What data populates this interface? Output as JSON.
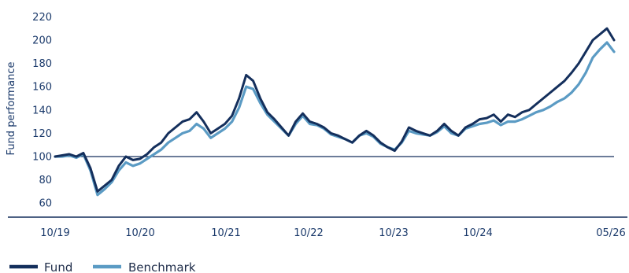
{
  "chart_data": {
    "type": "line",
    "title": "",
    "xlabel": "",
    "ylabel": "Fund performance",
    "y_ticks": [
      60,
      80,
      100,
      120,
      140,
      160,
      180,
      200,
      220
    ],
    "x_ticks": [
      "10/19",
      "10/20",
      "10/21",
      "10/22",
      "10/23",
      "10/24",
      "05/26"
    ],
    "ylim": [
      52,
      225
    ],
    "reference_line": 100,
    "legend_position": "bottom-left",
    "colors": {
      "fund": "#142f5c",
      "benchmark": "#5b9bc4",
      "axis": "#142f5c",
      "text": "#1b3a6b"
    },
    "series": [
      {
        "name": "Fund",
        "color": "#142f5c",
        "x": [
          "10/19",
          "11/19",
          "12/19",
          "01/20",
          "02/20",
          "03/20",
          "04/20",
          "05/20",
          "06/20",
          "07/20",
          "08/20",
          "09/20",
          "10/20",
          "11/20",
          "12/20",
          "01/21",
          "02/21",
          "03/21",
          "04/21",
          "05/21",
          "06/21",
          "07/21",
          "08/21",
          "09/21",
          "10/21",
          "11/21",
          "12/21",
          "01/22",
          "02/22",
          "03/22",
          "04/22",
          "05/22",
          "06/22",
          "07/22",
          "08/22",
          "09/22",
          "10/22",
          "11/22",
          "12/22",
          "01/23",
          "02/23",
          "03/23",
          "04/23",
          "05/23",
          "06/23",
          "07/23",
          "08/23",
          "09/23",
          "10/23",
          "11/23",
          "12/23",
          "01/24",
          "02/24",
          "03/24",
          "04/24",
          "05/24",
          "06/24",
          "07/24",
          "08/24",
          "09/24",
          "10/24",
          "11/24",
          "12/24",
          "01/25",
          "02/25",
          "03/25",
          "04/25",
          "05/25",
          "06/25",
          "07/25",
          "08/25",
          "09/25",
          "10/25",
          "11/25",
          "12/25",
          "01/26",
          "02/26",
          "03/26",
          "04/26",
          "05/26"
        ],
        "values": [
          100,
          101,
          102,
          100,
          103,
          90,
          70,
          75,
          80,
          92,
          100,
          97,
          98,
          102,
          108,
          112,
          120,
          125,
          130,
          132,
          138,
          130,
          120,
          124,
          128,
          135,
          150,
          170,
          165,
          150,
          138,
          132,
          125,
          118,
          130,
          137,
          130,
          128,
          125,
          120,
          118,
          115,
          112,
          118,
          122,
          118,
          112,
          108,
          105,
          113,
          125,
          122,
          120,
          118,
          122,
          128,
          122,
          118,
          125,
          128,
          132,
          133,
          136,
          130,
          136,
          134,
          138,
          140,
          145,
          150,
          155,
          160,
          165,
          172,
          180,
          190,
          200,
          205,
          210,
          200
        ]
      },
      {
        "name": "Benchmark",
        "color": "#5b9bc4",
        "x": [
          "10/19",
          "11/19",
          "12/19",
          "01/20",
          "02/20",
          "03/20",
          "04/20",
          "05/20",
          "06/20",
          "07/20",
          "08/20",
          "09/20",
          "10/20",
          "11/20",
          "12/20",
          "01/21",
          "02/21",
          "03/21",
          "04/21",
          "05/21",
          "06/21",
          "07/21",
          "08/21",
          "09/21",
          "10/21",
          "11/21",
          "12/21",
          "01/22",
          "02/22",
          "03/22",
          "04/22",
          "05/22",
          "06/22",
          "07/22",
          "08/22",
          "09/22",
          "10/22",
          "11/22",
          "12/22",
          "01/23",
          "02/23",
          "03/23",
          "04/23",
          "05/23",
          "06/23",
          "07/23",
          "08/23",
          "09/23",
          "10/23",
          "11/23",
          "12/23",
          "01/24",
          "02/24",
          "03/24",
          "04/24",
          "05/24",
          "06/24",
          "07/24",
          "08/24",
          "09/24",
          "10/24",
          "11/24",
          "12/24",
          "01/25",
          "02/25",
          "03/25",
          "04/25",
          "05/25",
          "06/25",
          "07/25",
          "08/25",
          "09/25",
          "10/25",
          "11/25",
          "12/25",
          "01/26",
          "02/26",
          "03/26",
          "04/26",
          "05/26"
        ],
        "values": [
          100,
          100,
          101,
          99,
          102,
          88,
          67,
          72,
          78,
          88,
          95,
          92,
          94,
          98,
          102,
          106,
          112,
          116,
          120,
          122,
          128,
          124,
          116,
          120,
          124,
          130,
          142,
          160,
          158,
          146,
          136,
          130,
          124,
          118,
          128,
          135,
          128,
          127,
          124,
          119,
          117,
          115,
          112,
          118,
          120,
          117,
          111,
          108,
          106,
          112,
          122,
          120,
          119,
          118,
          121,
          126,
          120,
          118,
          124,
          126,
          128,
          129,
          131,
          127,
          130,
          130,
          132,
          135,
          138,
          140,
          143,
          147,
          150,
          155,
          162,
          172,
          185,
          192,
          198,
          190
        ]
      }
    ]
  }
}
